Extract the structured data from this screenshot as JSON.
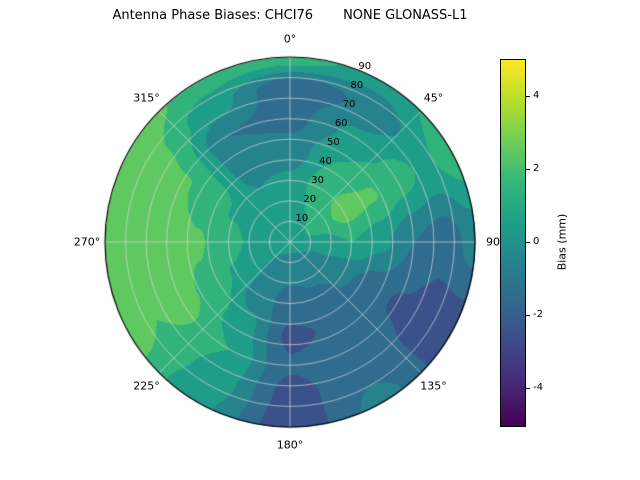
{
  "title": {
    "part1": "Antenna Phase Biases: CHCI76",
    "part2": "NONE GLONASS-L1"
  },
  "chart_data": {
    "type": "heatmap",
    "projection": "polar",
    "title": "Antenna Phase Biases: CHCI76        NONE GLONASS-L1",
    "description": "Polar filled-contour map of antenna phase bias versus azimuth (0° at top, clockwise) and zenith angle (0 at center to 90 at edge).",
    "azimuth_labels": [
      {
        "text": "0°",
        "angle": 0
      },
      {
        "text": "45°",
        "angle": 45
      },
      {
        "text": "90",
        "angle": 90
      },
      {
        "text": "135°",
        "angle": 135
      },
      {
        "text": "180°",
        "angle": 180
      },
      {
        "text": "225°",
        "angle": 225
      },
      {
        "text": "270°",
        "angle": 270
      },
      {
        "text": "315°",
        "angle": 315
      }
    ],
    "radial_ticks": [
      10,
      20,
      30,
      40,
      50,
      60,
      70,
      80,
      90
    ],
    "rlabel_angle_deg": 22.5,
    "radial_max": 90,
    "azimuths_deg": [
      0,
      30,
      60,
      90,
      120,
      150,
      180,
      210,
      240,
      270,
      300,
      330,
      360
    ],
    "zeniths_deg": [
      0,
      15,
      30,
      45,
      60,
      75,
      90
    ],
    "bias_grid_mm": [
      [
        0.3,
        0.3,
        0.3,
        0.3,
        0.3,
        0.3,
        0.3,
        0.3,
        0.3,
        0.3,
        0.3,
        0.3,
        0.3
      ],
      [
        0.6,
        1.0,
        1.4,
        0.6,
        -0.2,
        -0.6,
        -0.8,
        -0.4,
        0.2,
        0.6,
        0.6,
        0.4,
        0.6
      ],
      [
        0.2,
        1.6,
        2.4,
        1.0,
        -0.8,
        -1.2,
        -1.4,
        -0.6,
        0.9,
        1.3,
        0.9,
        0.0,
        0.2
      ],
      [
        -0.6,
        1.0,
        2.1,
        0.2,
        -1.6,
        -1.8,
        -2.2,
        0.4,
        1.8,
        2.1,
        1.6,
        -0.6,
        -0.6
      ],
      [
        -1.3,
        0.2,
        1.4,
        -1.0,
        -2.1,
        -1.4,
        -1.9,
        1.0,
        2.3,
        2.5,
        2.1,
        -1.0,
        -1.3
      ],
      [
        -1.9,
        -0.8,
        0.8,
        -1.6,
        -2.5,
        -1.1,
        -2.4,
        0.7,
        2.0,
        2.7,
        2.3,
        0.4,
        -1.9
      ],
      [
        1.6,
        0.4,
        1.6,
        -0.6,
        -2.7,
        -0.7,
        -2.7,
        0.2,
        2.4,
        2.9,
        2.7,
        1.6,
        1.6
      ]
    ],
    "levels_mm": {
      "vmin": -5,
      "vmax": 5,
      "step": 1
    },
    "colorbar": {
      "label": "Bias (mm)",
      "ticks": [
        "-4",
        "-2",
        "0",
        "2",
        "4"
      ],
      "tick_values": [
        -4,
        -2,
        0,
        2,
        4
      ],
      "vmin": -5,
      "vmax": 5
    },
    "colormap": {
      "name": "viridis",
      "anchors": [
        "#440154",
        "#482878",
        "#3e4989",
        "#31688e",
        "#26828e",
        "#1f9e89",
        "#35b779",
        "#6ece58",
        "#b5de2b",
        "#fde725"
      ]
    },
    "grid_color": "#dcdcdc",
    "spine_color": "#000000",
    "legend_position": "right",
    "grid": true
  }
}
